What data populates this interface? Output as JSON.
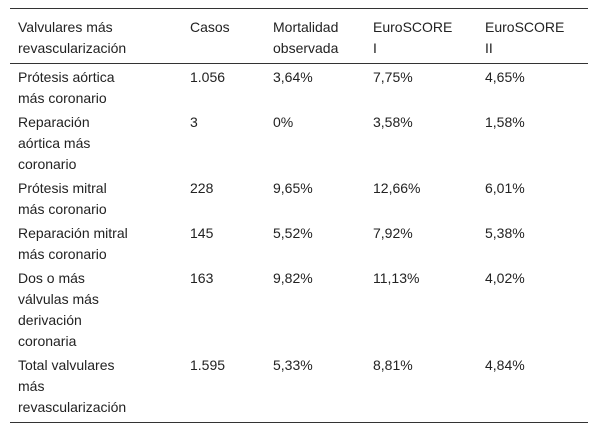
{
  "table": {
    "header": [
      [
        "Valvulares más",
        "revascularización"
      ],
      [
        "Casos"
      ],
      [
        "Mortalidad",
        "observada"
      ],
      [
        "EuroSCORE",
        "I"
      ],
      [
        "EuroSCORE",
        "II"
      ]
    ],
    "rows": [
      [
        [
          "Prótesis aórtica",
          "más coronario"
        ],
        [
          "1.056"
        ],
        [
          "3,64%"
        ],
        [
          "7,75%"
        ],
        [
          "4,65%"
        ]
      ],
      [
        [
          "Reparación",
          "aórtica más",
          "coronario"
        ],
        [
          "3"
        ],
        [
          "0%"
        ],
        [
          "3,58%"
        ],
        [
          "1,58%"
        ]
      ],
      [
        [
          "Prótesis mitral",
          "más coronario"
        ],
        [
          "228"
        ],
        [
          "9,65%"
        ],
        [
          "12,66%"
        ],
        [
          "6,01%"
        ]
      ],
      [
        [
          "Reparación mitral",
          "más coronario"
        ],
        [
          "145"
        ],
        [
          "5,52%"
        ],
        [
          "7,92%"
        ],
        [
          "5,38%"
        ]
      ],
      [
        [
          "Dos o más",
          "válvulas más",
          "derivación",
          "coronaria"
        ],
        [
          "163"
        ],
        [
          "9,82%"
        ],
        [
          "11,13%"
        ],
        [
          "4,02%"
        ]
      ],
      [
        [
          "Total valvulares",
          "más",
          "revascularización"
        ],
        [
          "1.595"
        ],
        [
          "5,33%"
        ],
        [
          "8,81%"
        ],
        [
          "4,84%"
        ]
      ]
    ]
  }
}
